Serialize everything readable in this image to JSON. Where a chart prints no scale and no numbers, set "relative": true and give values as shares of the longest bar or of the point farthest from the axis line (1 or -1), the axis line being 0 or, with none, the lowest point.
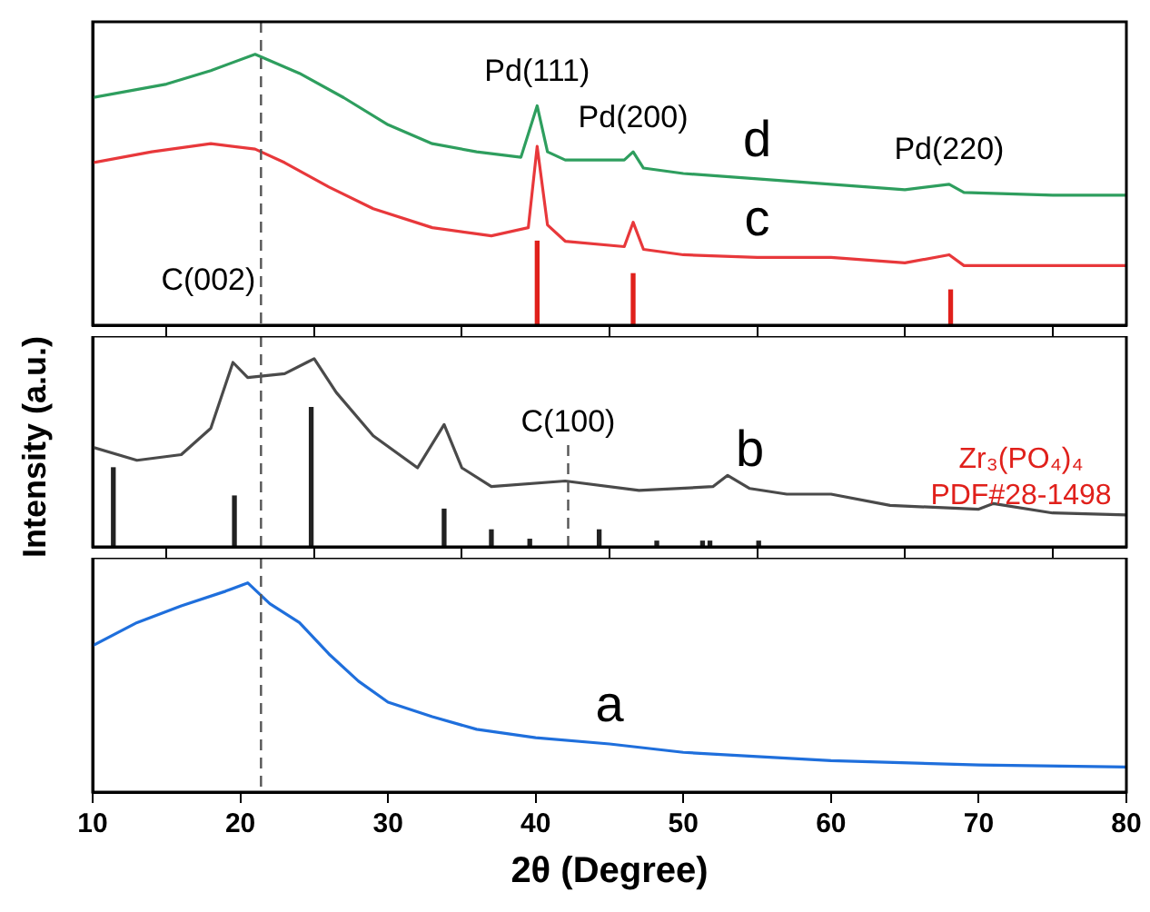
{
  "chart_data": [
    {
      "type": "line",
      "relative": true,
      "xlim": [
        10,
        80
      ],
      "xticks": [
        10,
        20,
        30,
        40,
        50,
        60,
        70,
        80
      ],
      "tick_labels": false,
      "legend": false,
      "marker": "none",
      "line_style": "solid",
      "series": [
        {
          "name": "d",
          "color": "#2e9e5e",
          "x": [
            10,
            15,
            18,
            21,
            24,
            27,
            30,
            33,
            36,
            39,
            40.1,
            40.8,
            42,
            46,
            46.6,
            47.3,
            50,
            55,
            60,
            65,
            68,
            69,
            75,
            80
          ],
          "values": [
            0.84,
            0.89,
            0.94,
            1.0,
            0.93,
            0.84,
            0.74,
            0.67,
            0.64,
            0.62,
            0.81,
            0.64,
            0.61,
            0.61,
            0.64,
            0.58,
            0.56,
            0.54,
            0.52,
            0.5,
            0.52,
            0.49,
            0.48,
            0.48
          ]
        },
        {
          "name": "c",
          "color": "#e8383b",
          "x": [
            10,
            14,
            18,
            21,
            23,
            26,
            29,
            33,
            37,
            39.5,
            40.1,
            40.8,
            42,
            46,
            46.6,
            47.3,
            50,
            55,
            60,
            65,
            68,
            69,
            75,
            80
          ],
          "values": [
            0.6,
            0.64,
            0.67,
            0.65,
            0.6,
            0.51,
            0.43,
            0.36,
            0.33,
            0.36,
            0.66,
            0.37,
            0.31,
            0.29,
            0.38,
            0.28,
            0.26,
            0.25,
            0.25,
            0.23,
            0.26,
            0.22,
            0.22,
            0.22
          ]
        },
        {
          "type": "bar",
          "color": "#e0201b",
          "x": [
            40.1,
            46.6,
            68.1
          ],
          "values": [
            0.31,
            0.19,
            0.13
          ]
        }
      ],
      "ref_lines": [
        {
          "axis": "x",
          "value": 21.4,
          "label": "C(002)",
          "color": "#555555",
          "line_style": "dashed"
        }
      ],
      "annotations": [
        {
          "text": "Pd(111)",
          "x": 40.1,
          "y": 0.81
        },
        {
          "text": "Pd(200)",
          "x": 46.6,
          "y": 0.64
        },
        {
          "text": "Pd(220)",
          "x": 68,
          "y": 0.52
        }
      ]
    },
    {
      "type": "line",
      "relative": true,
      "xlim": [
        10,
        80
      ],
      "xticks": [
        10,
        20,
        30,
        40,
        50,
        60,
        70,
        80
      ],
      "tick_labels": false,
      "legend": false,
      "marker": "none",
      "line_style": "solid",
      "ylabel": "Intensity (a.u.)",
      "series": [
        {
          "name": "b",
          "color": "#4a4a4a",
          "x": [
            10,
            13,
            16,
            18,
            19.5,
            20.5,
            23,
            24.5,
            25,
            26.5,
            29,
            32,
            33.8,
            35,
            37,
            42,
            47,
            52,
            53,
            54.5,
            57,
            60,
            64,
            70,
            71,
            75,
            80
          ],
          "values": [
            0.53,
            0.46,
            0.49,
            0.63,
            0.98,
            0.9,
            0.92,
            0.98,
            1.0,
            0.82,
            0.59,
            0.42,
            0.65,
            0.42,
            0.32,
            0.35,
            0.3,
            0.32,
            0.38,
            0.31,
            0.28,
            0.28,
            0.22,
            0.2,
            0.23,
            0.18,
            0.17
          ]
        },
        {
          "type": "bar",
          "color": "#222222",
          "x": [
            11.4,
            19.6,
            24.8,
            33.8,
            37,
            39.6,
            44.3,
            48.2,
            51.3,
            51.8,
            55.1
          ],
          "values": [
            0.42,
            0.27,
            0.74,
            0.2,
            0.09,
            0.04,
            0.09,
            0.03,
            0.03,
            0.03,
            0.03
          ]
        }
      ],
      "ref_lines": [
        {
          "axis": "x",
          "value": 21.4,
          "color": "#555555",
          "line_style": "dashed"
        },
        {
          "axis": "x",
          "value": 42.2,
          "label": "C(100)",
          "color": "#555555",
          "line_style": "dashed"
        }
      ],
      "annotations": [
        "Zr₃(PO₄)₄",
        "PDF#28-1498"
      ]
    },
    {
      "type": "line",
      "relative": true,
      "xlim": [
        10,
        80
      ],
      "xticks": [
        10,
        20,
        30,
        40,
        50,
        60,
        70,
        80
      ],
      "tick_labels": "x",
      "legend": false,
      "marker": "none",
      "line_style": "solid",
      "xlabel": "2θ (Degree)",
      "series": [
        {
          "name": "a",
          "color": "#1f6fdc",
          "x": [
            10,
            13,
            16,
            19,
            20.5,
            22,
            24,
            26,
            28,
            30,
            33,
            36,
            40,
            45,
            50,
            55,
            60,
            70,
            80
          ],
          "values": [
            0.7,
            0.81,
            0.89,
            0.96,
            1.0,
            0.9,
            0.81,
            0.66,
            0.53,
            0.43,
            0.36,
            0.3,
            0.26,
            0.23,
            0.19,
            0.17,
            0.15,
            0.13,
            0.12
          ]
        }
      ],
      "ref_lines": [
        {
          "axis": "x",
          "value": 21.4,
          "color": "#555555",
          "line_style": "dashed"
        }
      ]
    }
  ]
}
